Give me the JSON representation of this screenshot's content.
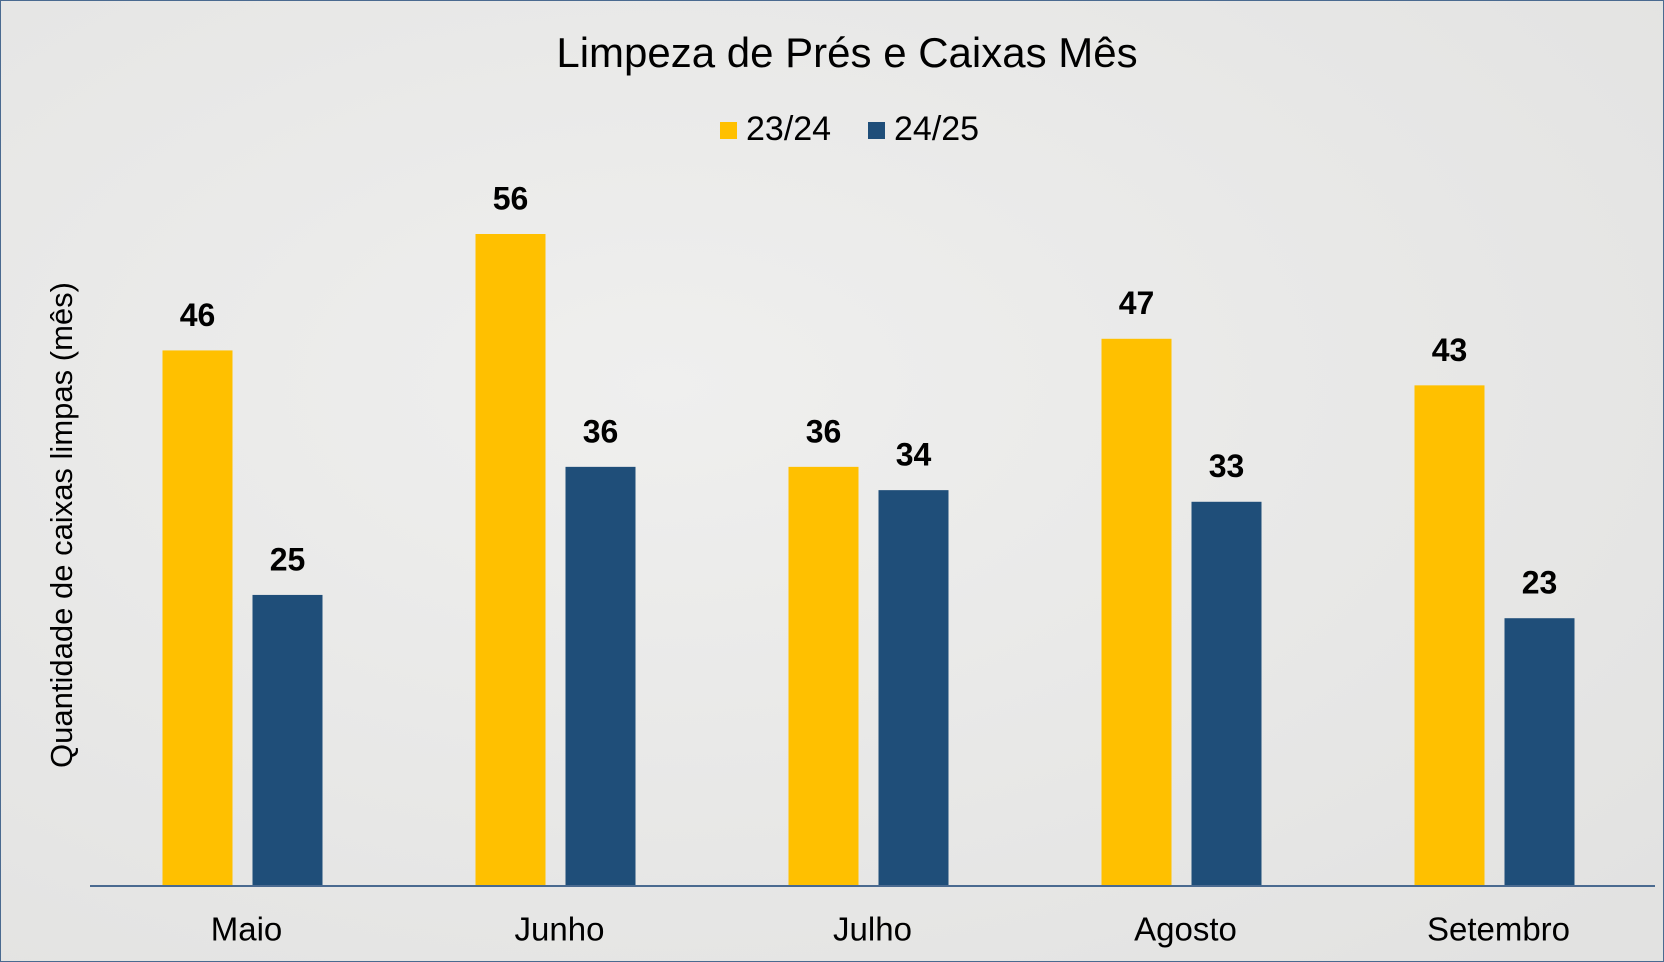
{
  "chart_data": {
    "type": "bar",
    "title": "Limpeza de Prés e Caixas Mês",
    "y_label": "Quantidade de caixas limpas (mês)",
    "categories": [
      "Maio",
      "Junho",
      "Julho",
      "Agosto",
      "Setembro"
    ],
    "series": [
      {
        "name": "23/24",
        "color": "#FFC000",
        "values": [
          46,
          56,
          36,
          47,
          43
        ]
      },
      {
        "name": "24/25",
        "color": "#1F4E79",
        "values": [
          25,
          36,
          34,
          33,
          23
        ]
      }
    ],
    "legend": "top"
  }
}
